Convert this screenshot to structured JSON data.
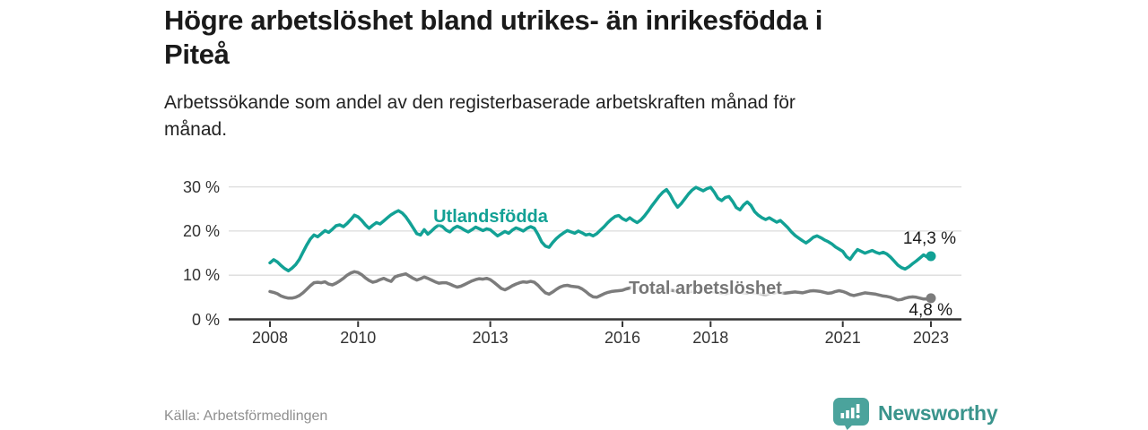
{
  "header": {
    "title_lines": [
      "Högre arbetslöshet bland utrikes- än inrikesfödda i",
      "Piteå"
    ],
    "subtitle_lines": [
      "Arbetssökande som andel av den registerbaserade arbetskraften månad för",
      "månad."
    ]
  },
  "chart_data": {
    "type": "line",
    "unit": "%",
    "x_start_year": 2008,
    "points_per_month": 1,
    "x_end": "2023-01",
    "ylim": [
      0,
      32
    ],
    "grid": "horizontal",
    "legend_position": "inline-labels",
    "x_ticks": [
      2008,
      2010,
      2013,
      2016,
      2018,
      2021,
      2023
    ],
    "x_tick_labels": [
      "2008",
      "2010",
      "2013",
      "2016",
      "2018",
      "2021",
      "2023"
    ],
    "y_tick_values": [
      30,
      20,
      10,
      0
    ],
    "y_tick_labels": [
      "30 %",
      "20 %",
      "10 %",
      "0 %"
    ],
    "series": [
      {
        "name": "Utlandsfödda",
        "color": "#12a195",
        "end_label": "14,3 %",
        "end_value": 14.3,
        "values": [
          12.8,
          13.5,
          13.0,
          12.2,
          11.5,
          11.0,
          11.6,
          12.4,
          13.6,
          15.2,
          16.8,
          18.2,
          19.1,
          18.7,
          19.4,
          20.1,
          19.7,
          20.4,
          21.2,
          21.4,
          21.0,
          21.7,
          22.6,
          23.6,
          23.2,
          22.4,
          21.4,
          20.6,
          21.3,
          21.9,
          21.6,
          22.3,
          23.0,
          23.7,
          24.2,
          24.6,
          24.1,
          23.2,
          22.0,
          20.7,
          19.4,
          19.1,
          20.3,
          19.3,
          20.0,
          20.8,
          21.4,
          21.0,
          20.2,
          19.8,
          20.6,
          21.1,
          20.7,
          20.2,
          19.8,
          20.3,
          20.9,
          20.5,
          20.1,
          20.5,
          20.3,
          19.6,
          18.9,
          19.4,
          19.9,
          19.5,
          20.2,
          20.7,
          20.4,
          20.0,
          20.6,
          21.0,
          20.6,
          19.2,
          17.5,
          16.6,
          16.3,
          17.4,
          18.3,
          19.0,
          19.6,
          20.1,
          19.8,
          19.5,
          20.0,
          19.6,
          19.1,
          19.3,
          18.9,
          19.4,
          20.2,
          21.0,
          21.9,
          22.7,
          23.3,
          23.5,
          22.8,
          22.4,
          23.0,
          22.4,
          21.9,
          22.5,
          23.4,
          24.5,
          25.7,
          26.8,
          27.9,
          28.8,
          29.4,
          28.2,
          26.6,
          25.4,
          26.2,
          27.3,
          28.4,
          29.3,
          29.9,
          29.5,
          29.1,
          29.6,
          29.9,
          28.8,
          27.4,
          26.9,
          27.6,
          27.8,
          26.7,
          25.3,
          24.8,
          25.9,
          26.6,
          25.8,
          24.4,
          23.6,
          23.0,
          22.6,
          23.0,
          22.5,
          22.0,
          22.4,
          21.6,
          20.8,
          19.8,
          19.0,
          18.4,
          17.8,
          17.3,
          17.9,
          18.6,
          18.9,
          18.5,
          18.0,
          17.6,
          17.1,
          16.4,
          15.9,
          15.4,
          14.2,
          13.6,
          14.8,
          15.8,
          15.4,
          15.0,
          15.3,
          15.6,
          15.2,
          14.9,
          15.2,
          14.8,
          14.1,
          13.2,
          12.3,
          11.7,
          11.4,
          11.9,
          12.6,
          13.2,
          13.9,
          14.6,
          14.1,
          14.3
        ]
      },
      {
        "name": "Total arbetslöshet",
        "color": "#7c7c7c",
        "end_label": "4,8 %",
        "end_value": 4.8,
        "values": [
          6.3,
          6.1,
          5.8,
          5.3,
          5.0,
          4.8,
          4.8,
          5.0,
          5.4,
          6.0,
          6.8,
          7.6,
          8.3,
          8.4,
          8.3,
          8.5,
          8.0,
          7.8,
          8.2,
          8.7,
          9.3,
          10.0,
          10.5,
          10.8,
          10.6,
          10.1,
          9.4,
          8.8,
          8.4,
          8.6,
          9.0,
          9.3,
          8.9,
          8.6,
          9.6,
          9.9,
          10.1,
          10.3,
          9.8,
          9.3,
          8.9,
          9.2,
          9.6,
          9.3,
          8.9,
          8.5,
          8.2,
          8.3,
          8.3,
          8.0,
          7.6,
          7.3,
          7.5,
          7.9,
          8.3,
          8.7,
          9.0,
          9.2,
          9.1,
          9.3,
          9.0,
          8.4,
          7.7,
          7.0,
          6.7,
          7.1,
          7.6,
          8.0,
          8.3,
          8.5,
          8.4,
          8.6,
          8.4,
          7.7,
          6.8,
          6.0,
          5.7,
          6.2,
          6.8,
          7.3,
          7.6,
          7.7,
          7.5,
          7.4,
          7.3,
          6.9,
          6.3,
          5.6,
          5.1,
          5.0,
          5.4,
          5.8,
          6.1,
          6.3,
          6.4,
          6.5,
          6.6,
          6.9,
          7.1,
          7.3,
          7.2,
          6.9,
          6.5,
          6.4,
          6.6,
          6.8,
          7.0,
          6.9,
          6.8,
          6.6,
          6.5,
          6.3,
          6.1,
          6.0,
          6.2,
          6.4,
          6.6,
          6.5,
          6.3,
          6.5,
          6.4,
          6.2,
          6.0,
          5.9,
          5.8,
          6.0,
          6.2,
          6.3,
          6.1,
          6.0,
          5.9,
          6.1,
          6.0,
          5.9,
          5.7,
          5.6,
          5.8,
          5.9,
          6.1,
          6.0,
          5.9,
          6.0,
          6.1,
          6.2,
          6.1,
          6.0,
          6.2,
          6.4,
          6.5,
          6.4,
          6.3,
          6.1,
          5.9,
          6.0,
          6.3,
          6.5,
          6.3,
          6.0,
          5.6,
          5.4,
          5.6,
          5.8,
          6.0,
          5.9,
          5.8,
          5.7,
          5.5,
          5.3,
          5.2,
          5.0,
          4.7,
          4.4,
          4.5,
          4.8,
          5.0,
          5.1,
          5.0,
          4.8,
          4.6,
          4.6,
          4.8
        ]
      }
    ]
  },
  "footer": {
    "source": "Källa: Arbetsförmedlingen",
    "brand": "Newsworthy"
  },
  "colors": {
    "accent_teal": "#12a195",
    "series_gray": "#7c7c7c",
    "brand_teal": "#3a948c",
    "logo_bubble": "#4ba39c",
    "text_dark": "#1a1a1a",
    "grid": "#dcdcdc",
    "axis": "#333333"
  }
}
